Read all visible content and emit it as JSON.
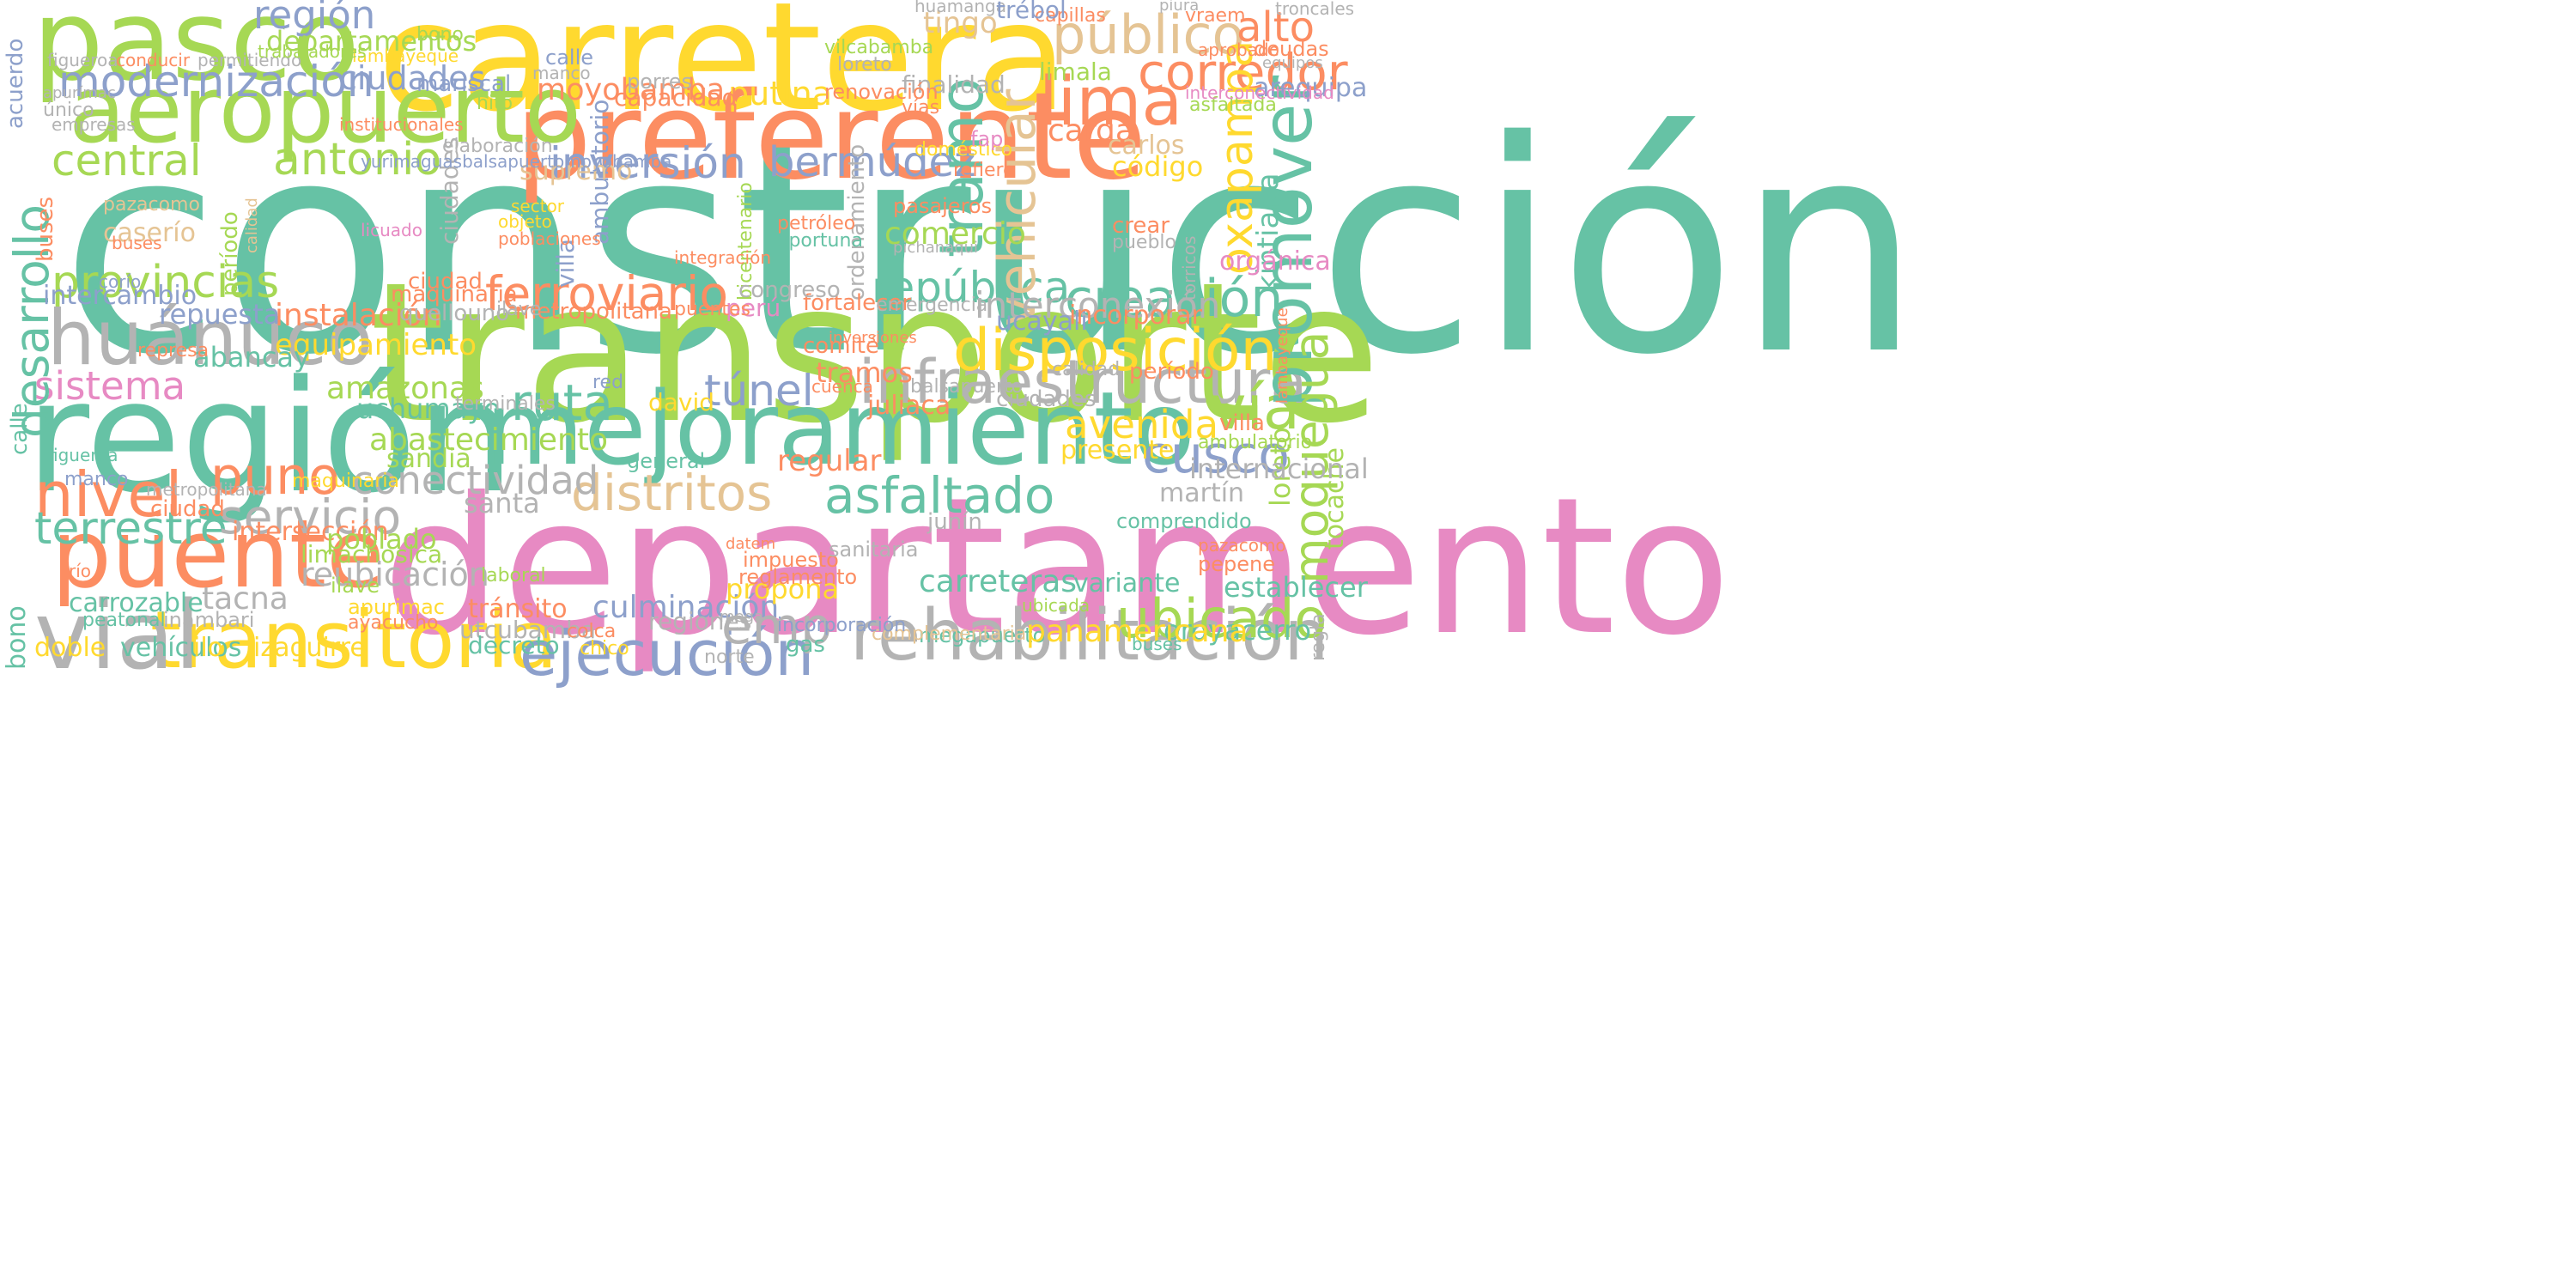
{
  "palette": {
    "teal": "#66c2a5",
    "orange": "#fc8d62",
    "blue": "#8da0cb",
    "pink": "#e78ac3",
    "lime": "#a6d854",
    "yellow": "#ffd92f",
    "tan": "#e5c494",
    "gray": "#b3b3b3"
  },
  "words": [
    "construcción",
    "transporte",
    "departamento",
    "región",
    "carretera",
    "preferente",
    "mejoramiento",
    "pasco",
    "aeropuerto",
    "puente",
    "transitoria",
    "vial",
    "huánuco",
    "infraestructura",
    "disposición",
    "asfaltado",
    "rehabilitación",
    "ejecución",
    "ubicado",
    "promover",
    "tramo",
    "vehicular",
    "nivel",
    "terrestre",
    "modernización",
    "público",
    "corredor",
    "lima",
    "central",
    "antonio",
    "inversión",
    "bermúdez",
    "provincias",
    "república",
    "creación",
    "ferroviario",
    "sistema",
    "distritos",
    "conectividad",
    "servicio",
    "ruta",
    "túnel",
    "vía",
    "avenida",
    "cusco",
    "puno",
    "moquegua",
    "desarrollo",
    "oxapampa",
    "kintiaria",
    "selva",
    "callao",
    "putina",
    "moyobamba",
    "departamentos",
    "mariscal",
    "carga",
    "limala",
    "arequipa",
    "carlos",
    "equipamiento",
    "instalación",
    "amazonas",
    "abancay",
    "uchumayo",
    "abastecimiento",
    "red",
    "david",
    "tramos",
    "cuenca",
    "juliaca",
    "interconexión",
    "ucayali",
    "incorporar",
    "comercio",
    "pasajeros",
    "finalidad",
    "intercambio",
    "repuesta",
    "represa",
    "centro",
    "intersección",
    "poblado",
    "limachosica",
    "reubicación",
    "tacna",
    "carrozable",
    "peatonal",
    "inambari",
    "apurimac",
    "ayacucho",
    "urbano",
    "tránsito",
    "decreto",
    "utcubamba",
    "culminación",
    "regiones",
    "propona",
    "impuesto",
    "reglamento",
    "sanitaria",
    "carreteras",
    "megapuerto",
    "complementaria",
    "establecer",
    "oroyacerro",
    "panamericana",
    "variante",
    "comprendido",
    "junín",
    "martín",
    "internacional",
    "regular",
    "general",
    "presente",
    "sandia",
    "santa",
    "doble",
    "vehículos",
    "ilo",
    "izaguirre",
    "emp",
    "incorporación",
    "gas",
    "norte",
    "tingo",
    "huamanga",
    "alto",
    "vraem",
    "capillas",
    "trébol",
    "vilcabamba",
    "loreto",
    "lambayeque",
    "renovación",
    "vías",
    "porres",
    "capacidad",
    "hito",
    "elaboración",
    "supremo",
    "refiere",
    "doméstico",
    "fap",
    "código",
    "crear",
    "pueblo",
    "orgánica",
    "fortalecer",
    "emergencia",
    "inversiones",
    "ciudades",
    "período",
    "calidad",
    "villa",
    "ambulatorio",
    "pazacomo",
    "caserío",
    "buses",
    "acuerdo",
    "bono",
    "calle",
    "manco",
    "figueroa",
    "conducir",
    "permitiendo",
    "trabajadores",
    "río",
    "ciudad",
    "maquinaria",
    "metropolitana",
    "quellouno",
    "ilave",
    "congreso",
    "perú",
    "puentes",
    "petróleo",
    "oportuna",
    "integración",
    "licuado",
    "pichanaqui",
    "cercado",
    "ordenamiento",
    "bicentenario",
    "sector",
    "objeto",
    "poblaciones",
    "aporte",
    "parque",
    "abastecimiento",
    "etapa",
    "pueblos",
    "financiamiento",
    "tocache",
    "regla",
    "torricos",
    "canta",
    "asfaltada",
    "pepene",
    "ubicada",
    "colca",
    "chico",
    "huancavelica",
    "terminales",
    "balsapuerto",
    "comité",
    "corío",
    "licencia",
    "yurimaguasbalsapuertomoyobamba",
    "ranchochagllaruímichaca",
    "trubutarias",
    "curahuasi",
    "bicentenario",
    "único",
    "empresas",
    "apurímac",
    "portuarios",
    "mejores",
    "samantochari",
    "concursal",
    "pasaje",
    "amparaes",
    "manseriche",
    "hidrocarburos",
    "santo",
    "chatarreo",
    "piura",
    "troncales",
    "deudas",
    "equipos",
    "aprobado",
    "interconectividad",
    "jubilación",
    "tipo",
    "carrión",
    "institucionales",
    "desnivel",
    "mega",
    "mediana",
    "acceso",
    "datem",
    "laboral",
    "industriales",
    "transandino",
    "libertad",
    "seguridad",
    "alférez",
    "barranca",
    "declaratoria",
    "fomento",
    "lares",
    "marañón",
    "calca",
    "apachacco",
    "cáceres",
    "territorio",
    "pensionarias",
    "perentorio",
    "afín",
    "hoyle",
    "aduanas"
  ]
}
